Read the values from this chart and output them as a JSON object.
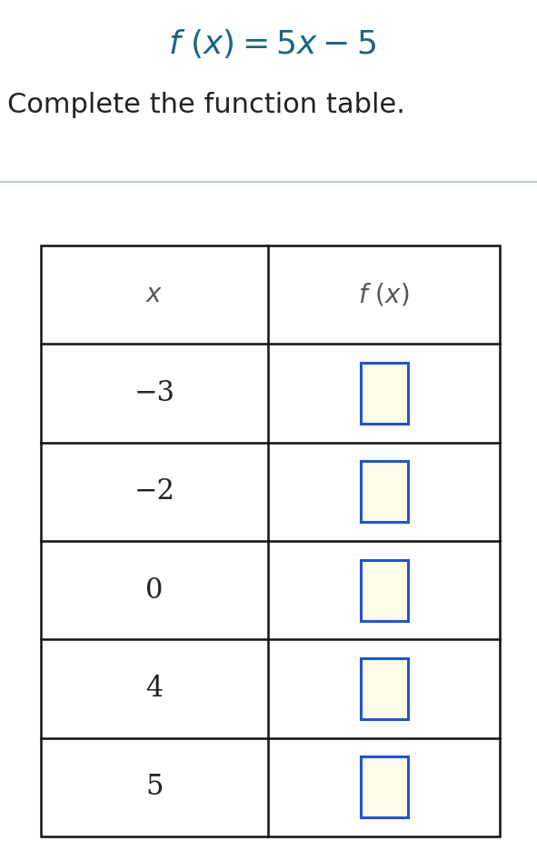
{
  "title_color": "#1a6680",
  "subtitle_color": "#222222",
  "bg_color": "#ffffff",
  "divider_color": "#a8c8d8",
  "table_border_color": "#111111",
  "x_values": [
    "−3",
    "−2",
    "0",
    "4",
    "5"
  ],
  "header_color": "#555555",
  "input_box_fill": "#fffde7",
  "input_box_border": "#2255cc",
  "subtitle": "Complete the function table."
}
